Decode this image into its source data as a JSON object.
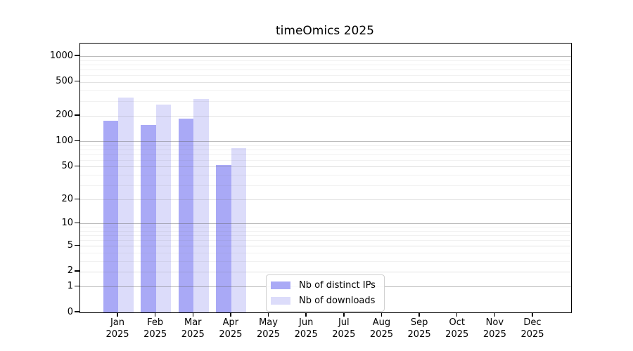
{
  "chart_data": {
    "type": "bar",
    "title": "timeOmics 2025",
    "y_scale": "log(1+x)",
    "grid": true,
    "legend_position": "inside-bottom-center",
    "categories": [
      "Jan",
      "Feb",
      "Mar",
      "Apr",
      "May",
      "Jun",
      "Jul",
      "Aug",
      "Sep",
      "Oct",
      "Nov",
      "Dec"
    ],
    "x_year_label": "2025",
    "yticks": [
      0,
      1,
      2,
      5,
      10,
      20,
      50,
      100,
      200,
      500,
      1000
    ],
    "major_grid_values": [
      1,
      10,
      100,
      1000
    ],
    "minor_grid_multiples": [
      3,
      4,
      6,
      7,
      8,
      9
    ],
    "ylim": [
      0,
      1410
    ],
    "series": [
      {
        "name": "Nb of distinct IPs",
        "color": "#a9a9f6",
        "values": [
          175,
          157,
          186,
          52,
          null,
          null,
          null,
          null,
          null,
          null,
          null,
          null
        ]
      },
      {
        "name": "Nb of downloads",
        "color": "#dcdcfa",
        "values": [
          330,
          269,
          318,
          83,
          null,
          null,
          null,
          null,
          null,
          null,
          null,
          null
        ]
      }
    ],
    "colors": {
      "frame": "#000000",
      "major_grid": "#b5b5b5",
      "mid_grid": "#e6e6e6",
      "minor_grid": "#f3f3f3",
      "background": "#ffffff"
    }
  }
}
